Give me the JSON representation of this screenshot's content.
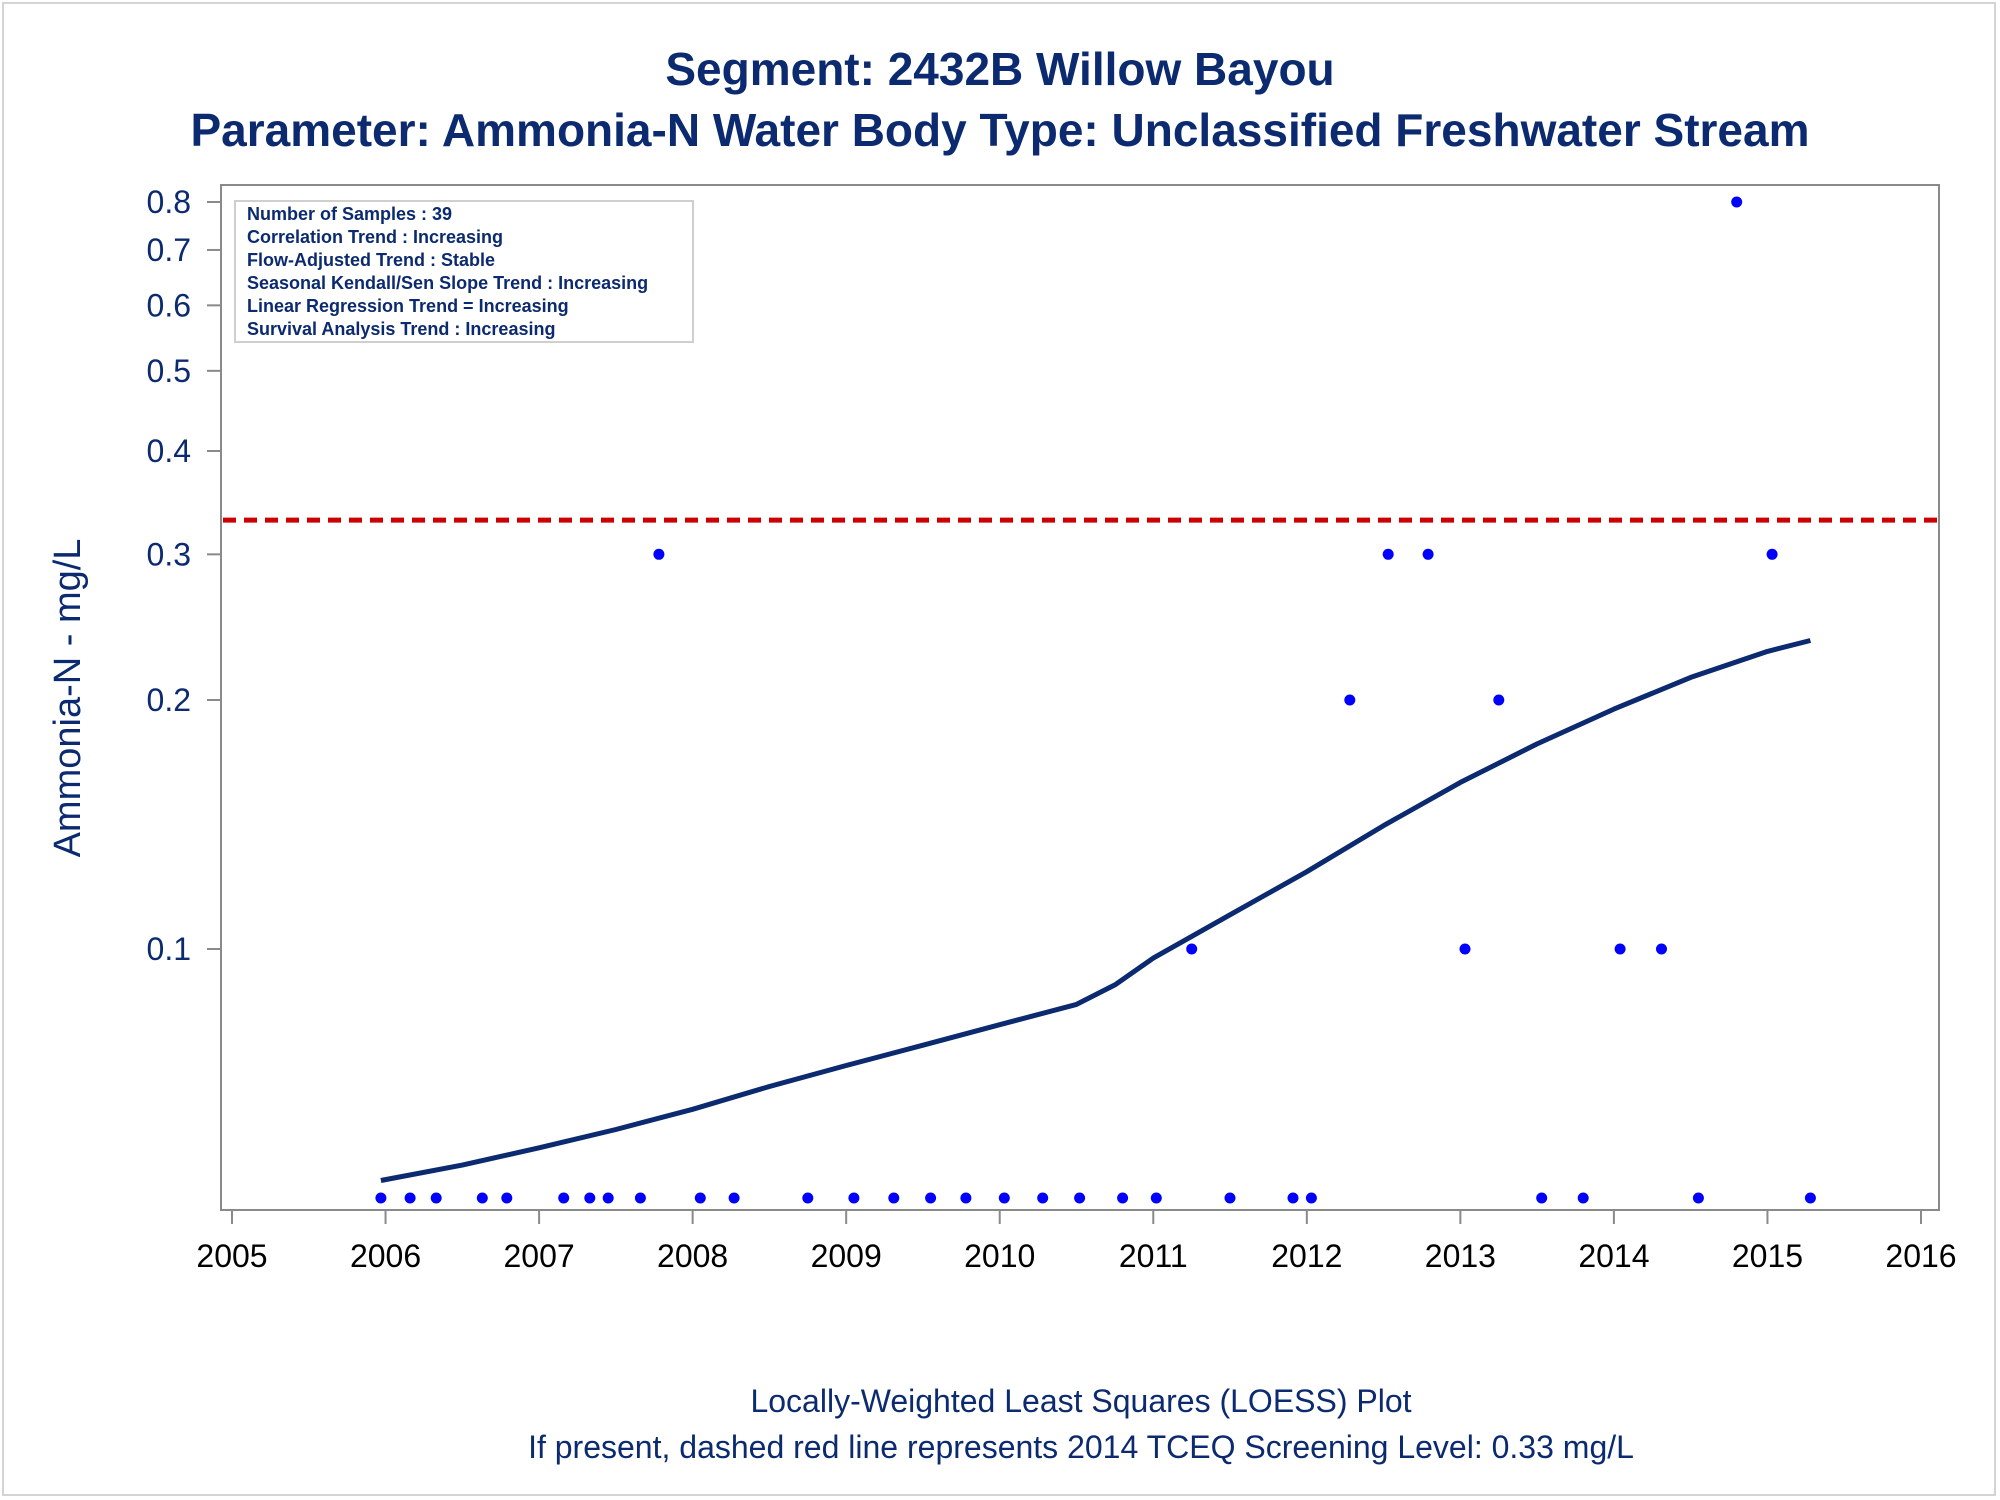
{
  "chart_data": {
    "type": "scatter",
    "title": "Segment: 2432B  Willow Bayou",
    "subtitle": "Parameter: Ammonia-N   Water Body Type: Unclassified Freshwater Stream",
    "xlabel": "",
    "ylabel": "Ammonia-N - mg/L",
    "y_scale": "log",
    "xlim": [
      2005,
      2016
    ],
    "ylim": [
      0.05,
      0.85
    ],
    "x_ticks": [
      2005,
      2006,
      2007,
      2008,
      2009,
      2010,
      2011,
      2012,
      2013,
      2014,
      2015,
      2016
    ],
    "x_tick_labels": [
      "2005",
      "2006",
      "2007",
      "2008",
      "2009",
      "2010",
      "2011",
      "2012",
      "2013",
      "2014",
      "2015",
      "2016"
    ],
    "y_ticks": [
      0.1,
      0.2,
      0.3,
      0.4,
      0.5,
      0.6,
      0.7,
      0.8
    ],
    "y_tick_labels": [
      "0.1",
      "0.2",
      "0.3",
      "0.4",
      "0.5",
      "0.6",
      "0.7",
      "0.8"
    ],
    "grid": false,
    "screening_level": {
      "value": 0.33,
      "color": "#cc0000",
      "style": "dashed"
    },
    "series": [
      {
        "type": "scatter",
        "color": "#0000ff",
        "points": [
          [
            2005.97,
            0.05
          ],
          [
            2006.16,
            0.05
          ],
          [
            2006.33,
            0.05
          ],
          [
            2006.63,
            0.05
          ],
          [
            2006.79,
            0.05
          ],
          [
            2007.16,
            0.05
          ],
          [
            2007.33,
            0.05
          ],
          [
            2007.45,
            0.05
          ],
          [
            2007.66,
            0.05
          ],
          [
            2007.78,
            0.3
          ],
          [
            2008.05,
            0.05
          ],
          [
            2008.27,
            0.05
          ],
          [
            2008.75,
            0.05
          ],
          [
            2009.05,
            0.05
          ],
          [
            2009.31,
            0.05
          ],
          [
            2009.55,
            0.05
          ],
          [
            2009.78,
            0.05
          ],
          [
            2010.03,
            0.05
          ],
          [
            2010.28,
            0.05
          ],
          [
            2010.52,
            0.05
          ],
          [
            2010.8,
            0.05
          ],
          [
            2011.02,
            0.05
          ],
          [
            2011.25,
            0.1
          ],
          [
            2011.5,
            0.05
          ],
          [
            2011.91,
            0.05
          ],
          [
            2012.03,
            0.05
          ],
          [
            2012.28,
            0.2
          ],
          [
            2012.53,
            0.3
          ],
          [
            2012.79,
            0.3
          ],
          [
            2013.03,
            0.1
          ],
          [
            2013.25,
            0.2
          ],
          [
            2013.53,
            0.05
          ],
          [
            2013.8,
            0.05
          ],
          [
            2014.04,
            0.1
          ],
          [
            2014.31,
            0.1
          ],
          [
            2014.55,
            0.05
          ],
          [
            2014.8,
            0.8
          ],
          [
            2015.03,
            0.3
          ],
          [
            2015.28,
            0.05
          ]
        ]
      },
      {
        "type": "line",
        "color": "#0b2a6f",
        "points": [
          [
            2005.97,
            0.0525
          ],
          [
            2006.5,
            0.0548
          ],
          [
            2007.0,
            0.0575
          ],
          [
            2007.5,
            0.0605
          ],
          [
            2008.0,
            0.064
          ],
          [
            2008.5,
            0.0682
          ],
          [
            2009.0,
            0.0723
          ],
          [
            2009.5,
            0.0765
          ],
          [
            2010.0,
            0.081
          ],
          [
            2010.5,
            0.0857
          ],
          [
            2010.75,
            0.0905
          ],
          [
            2011.0,
            0.0975
          ],
          [
            2011.5,
            0.11
          ],
          [
            2012.0,
            0.124
          ],
          [
            2012.5,
            0.141
          ],
          [
            2013.0,
            0.159
          ],
          [
            2013.5,
            0.177
          ],
          [
            2014.0,
            0.195
          ],
          [
            2014.5,
            0.213
          ],
          [
            2015.0,
            0.229
          ],
          [
            2015.28,
            0.236
          ]
        ]
      }
    ],
    "info_box": {
      "placement": "top-left",
      "lines": [
        "Number of Samples : 39",
        "Correlation Trend : Increasing",
        "Flow-Adjusted Trend : Stable",
        "Seasonal Kendall/Sen Slope Trend : Increasing",
        "Linear Regression Trend = Increasing",
        "Survival Analysis Trend : Increasing"
      ]
    },
    "footnotes": [
      "Locally-Weighted Least Squares (LOESS) Plot",
      "If present, dashed red line represents 2014 TCEQ Screening Level: 0.33 mg/L"
    ]
  }
}
